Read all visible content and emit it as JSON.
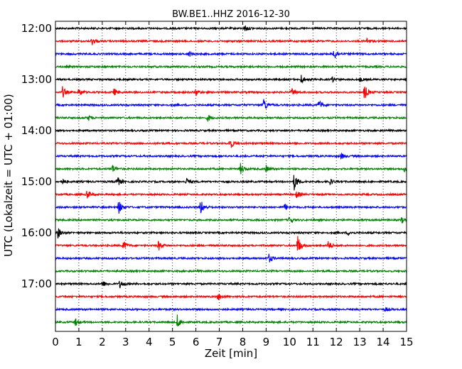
{
  "chart_data": {
    "type": "line",
    "title": "BW.BE1..HHZ 2016-12-30",
    "xlabel": "Zeit  [min]",
    "ylabel": "UTC (Lokalzeit = UTC + 01:00)",
    "xlim": [
      0,
      15
    ],
    "x_ticks": [
      "0",
      "1",
      "2",
      "3",
      "4",
      "5",
      "6",
      "7",
      "8",
      "9",
      "10",
      "11",
      "12",
      "13",
      "14",
      "15"
    ],
    "grid": true,
    "row_interval_min": 15,
    "y_ticks": [
      {
        "label": "12:00",
        "row": 0
      },
      {
        "label": "13:00",
        "row": 4
      },
      {
        "label": "14:00",
        "row": 8
      },
      {
        "label": "15:00",
        "row": 12
      },
      {
        "label": "16:00",
        "row": 16
      },
      {
        "label": "17:00",
        "row": 20
      }
    ],
    "colors": [
      "#000000",
      "#ff0000",
      "#0000ff",
      "#008000"
    ],
    "traces": [
      {
        "start": "12:00",
        "color": "#000000",
        "events": [
          {
            "t": 8.1,
            "a": 5
          }
        ]
      },
      {
        "start": "12:15",
        "color": "#ff0000",
        "events": [
          {
            "t": 1.55,
            "a": 6
          },
          {
            "t": 13.3,
            "a": 4
          }
        ]
      },
      {
        "start": "12:30",
        "color": "#0000ff",
        "events": [
          {
            "t": 5.7,
            "a": 4
          },
          {
            "t": 11.9,
            "a": 9
          }
        ]
      },
      {
        "start": "12:45",
        "color": "#008000",
        "events": []
      },
      {
        "start": "13:00",
        "color": "#000000",
        "events": [
          {
            "t": 10.5,
            "a": 6
          },
          {
            "t": 11.8,
            "a": 4
          },
          {
            "t": 13.0,
            "a": 3
          }
        ]
      },
      {
        "start": "13:15",
        "color": "#ff0000",
        "events": [
          {
            "t": 0.3,
            "a": 8
          },
          {
            "t": 1.0,
            "a": 6
          },
          {
            "t": 2.5,
            "a": 5
          },
          {
            "t": 6.0,
            "a": 5
          },
          {
            "t": 10.1,
            "a": 6
          },
          {
            "t": 13.2,
            "a": 11
          }
        ]
      },
      {
        "start": "13:30",
        "color": "#0000ff",
        "events": [
          {
            "t": 8.9,
            "a": 10
          },
          {
            "t": 11.25,
            "a": 7
          }
        ]
      },
      {
        "start": "13:45",
        "color": "#008000",
        "events": [
          {
            "t": 1.4,
            "a": 4
          },
          {
            "t": 6.5,
            "a": 5
          }
        ]
      },
      {
        "start": "14:00",
        "color": "#000000",
        "events": []
      },
      {
        "start": "14:15",
        "color": "#ff0000",
        "events": [
          {
            "t": 7.45,
            "a": 9
          }
        ]
      },
      {
        "start": "14:30",
        "color": "#0000ff",
        "events": [
          {
            "t": 12.2,
            "a": 4
          }
        ]
      },
      {
        "start": "14:45",
        "color": "#008000",
        "events": [
          {
            "t": 2.4,
            "a": 7
          },
          {
            "t": 7.9,
            "a": 8
          },
          {
            "t": 9.0,
            "a": 5
          },
          {
            "t": 14.9,
            "a": 4
          }
        ]
      },
      {
        "start": "15:00",
        "color": "#000000",
        "events": [
          {
            "t": 0.25,
            "a": 5
          },
          {
            "t": 2.6,
            "a": 10
          },
          {
            "t": 5.6,
            "a": 5
          },
          {
            "t": 10.2,
            "a": 13
          },
          {
            "t": 11.7,
            "a": 5
          }
        ]
      },
      {
        "start": "15:15",
        "color": "#ff0000",
        "events": [
          {
            "t": 1.35,
            "a": 7
          },
          {
            "t": 10.3,
            "a": 5
          }
        ]
      },
      {
        "start": "15:30",
        "color": "#0000ff",
        "events": [
          {
            "t": 2.7,
            "a": 10
          },
          {
            "t": 6.2,
            "a": 11
          },
          {
            "t": 9.8,
            "a": 5
          }
        ]
      },
      {
        "start": "15:45",
        "color": "#008000",
        "events": [
          {
            "t": 10.0,
            "a": 5
          },
          {
            "t": 14.8,
            "a": 4
          }
        ]
      },
      {
        "start": "16:00",
        "color": "#000000",
        "events": [
          {
            "t": 0.1,
            "a": 8
          },
          {
            "t": 12.5,
            "a": 3
          }
        ]
      },
      {
        "start": "16:15",
        "color": "#ff0000",
        "events": [
          {
            "t": 2.9,
            "a": 7
          },
          {
            "t": 4.4,
            "a": 7
          },
          {
            "t": 10.35,
            "a": 14
          },
          {
            "t": 11.65,
            "a": 7
          }
        ]
      },
      {
        "start": "16:30",
        "color": "#0000ff",
        "events": [
          {
            "t": 9.1,
            "a": 7
          }
        ]
      },
      {
        "start": "16:45",
        "color": "#008000",
        "events": []
      },
      {
        "start": "17:00",
        "color": "#000000",
        "events": [
          {
            "t": 2.0,
            "a": 5
          },
          {
            "t": 2.75,
            "a": 6
          }
        ]
      },
      {
        "start": "17:15",
        "color": "#ff0000",
        "events": [
          {
            "t": 6.95,
            "a": 5
          }
        ]
      },
      {
        "start": "17:30",
        "color": "#0000ff",
        "events": [
          {
            "t": 14.1,
            "a": 3
          }
        ]
      },
      {
        "start": "17:45",
        "color": "#008000",
        "events": [
          {
            "t": 0.85,
            "a": 5
          },
          {
            "t": 5.2,
            "a": 10
          }
        ]
      }
    ]
  }
}
